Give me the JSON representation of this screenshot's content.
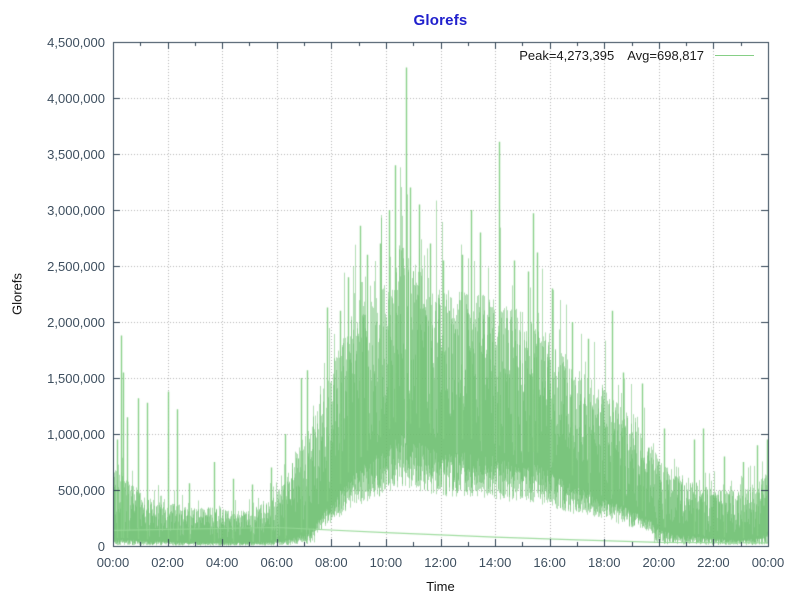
{
  "title": {
    "text": "Glorefs",
    "color": "#2020cd"
  },
  "legend": {
    "peak_label": "Peak=4,273,395",
    "avg_label": "Avg=698,817",
    "sample_color": "#86cf86"
  },
  "chart_data": {
    "type": "line",
    "style": "impulse-noise-band",
    "title": "Glorefs",
    "xlabel": "Time",
    "ylabel": "Glorefs",
    "x_unit": "hours",
    "xlim_hours": [
      0,
      24
    ],
    "ylim": [
      0,
      4500000
    ],
    "grid": true,
    "legend_position": "top-right",
    "peak": 4273395,
    "avg": 698817,
    "xtick_labels": [
      "00:00",
      "02:00",
      "04:00",
      "06:00",
      "08:00",
      "10:00",
      "12:00",
      "14:00",
      "16:00",
      "18:00",
      "20:00",
      "22:00",
      "00:00"
    ],
    "ytick_labels": [
      "0",
      "500,000",
      "1,000,000",
      "1,500,000",
      "2,000,000",
      "2,500,000",
      "3,000,000",
      "3,500,000",
      "4,000,000",
      "4,500,000"
    ],
    "colors": {
      "series": "#68bd6c",
      "series_light": "#86cf86",
      "trend": "#96d896",
      "grid": "#b6b6b6",
      "axis": "#2e4152",
      "tick_label": "#3e4f5f"
    },
    "noise_seed": 1337,
    "series": [
      {
        "name": "glorefs",
        "representation": "envelope",
        "envelope": [
          [
            0,
            60000,
            800000
          ],
          [
            0.5,
            60000,
            650000
          ],
          [
            1,
            50000,
            480000
          ],
          [
            1.5,
            45000,
            420000
          ],
          [
            2,
            40000,
            400000
          ],
          [
            2.5,
            35000,
            370000
          ],
          [
            3,
            30000,
            340000
          ],
          [
            3.5,
            30000,
            350000
          ],
          [
            4,
            30000,
            330000
          ],
          [
            4.5,
            30000,
            320000
          ],
          [
            5,
            30000,
            330000
          ],
          [
            5.5,
            35000,
            380000
          ],
          [
            6,
            45000,
            470000
          ],
          [
            6.5,
            60000,
            700000
          ],
          [
            7,
            110000,
            1000000
          ],
          [
            7.5,
            220000,
            1300000
          ],
          [
            8,
            380000,
            1600000
          ],
          [
            8.5,
            520000,
            1950000
          ],
          [
            9,
            650000,
            2200000
          ],
          [
            9.5,
            750000,
            2350000
          ],
          [
            10,
            850000,
            2500000
          ],
          [
            10.5,
            950000,
            2750000
          ],
          [
            11,
            900000,
            2600000
          ],
          [
            11.5,
            850000,
            2450000
          ],
          [
            12,
            800000,
            2350000
          ],
          [
            12.5,
            780000,
            2250000
          ],
          [
            13,
            800000,
            2300000
          ],
          [
            13.5,
            780000,
            2250000
          ],
          [
            14,
            760000,
            2200000
          ],
          [
            14.5,
            720000,
            2150000
          ],
          [
            15,
            700000,
            2100000
          ],
          [
            15.5,
            700000,
            2050000
          ],
          [
            16,
            640000,
            1900000
          ],
          [
            16.5,
            560000,
            1750000
          ],
          [
            17,
            500000,
            1600000
          ],
          [
            17.5,
            460000,
            1500000
          ],
          [
            18,
            420000,
            1450000
          ],
          [
            18.5,
            360000,
            1300000
          ],
          [
            19,
            300000,
            1150000
          ],
          [
            19.5,
            250000,
            1000000
          ],
          [
            20,
            160000,
            800000
          ],
          [
            20.5,
            110000,
            650000
          ],
          [
            21,
            90000,
            600000
          ],
          [
            21.5,
            85000,
            560000
          ],
          [
            22,
            70000,
            520000
          ],
          [
            22.5,
            65000,
            500000
          ],
          [
            23,
            55000,
            500000
          ],
          [
            23.5,
            65000,
            560000
          ],
          [
            24,
            110000,
            660000
          ]
        ],
        "spikes": [
          [
            0.15,
            950000
          ],
          [
            0.3,
            1880000
          ],
          [
            0.38,
            1550000
          ],
          [
            0.5,
            1150000
          ],
          [
            0.9,
            1320000
          ],
          [
            1.25,
            1280000
          ],
          [
            2.0,
            1380000
          ],
          [
            2.35,
            1220000
          ],
          [
            2.8,
            560000
          ],
          [
            3.7,
            750000
          ],
          [
            4.4,
            600000
          ],
          [
            5.1,
            550000
          ],
          [
            5.8,
            700000
          ],
          [
            6.3,
            1000000
          ],
          [
            6.9,
            1500000
          ],
          [
            7.1,
            1570000
          ],
          [
            7.85,
            2130000
          ],
          [
            8.3,
            2100000
          ],
          [
            8.6,
            2400000
          ],
          [
            9.05,
            2860000
          ],
          [
            9.3,
            2600000
          ],
          [
            9.8,
            2700000
          ],
          [
            10.1,
            3000000
          ],
          [
            10.35,
            3400000
          ],
          [
            10.72,
            4273395
          ],
          [
            10.9,
            3200000
          ],
          [
            11.2,
            3050000
          ],
          [
            11.6,
            2700000
          ],
          [
            12.1,
            2550000
          ],
          [
            12.8,
            2600000
          ],
          [
            13.1,
            3000000
          ],
          [
            13.45,
            2800000
          ],
          [
            14.15,
            3610000
          ],
          [
            14.7,
            2550000
          ],
          [
            15.2,
            2450000
          ],
          [
            15.4,
            2970000
          ],
          [
            15.55,
            2620000
          ],
          [
            16.1,
            2300000
          ],
          [
            16.8,
            2000000
          ],
          [
            17.4,
            1850000
          ],
          [
            18.3,
            2100000
          ],
          [
            18.7,
            1550000
          ],
          [
            19.4,
            1450000
          ],
          [
            20.2,
            1050000
          ],
          [
            21.3,
            950000
          ],
          [
            21.6,
            1050000
          ],
          [
            22.4,
            800000
          ],
          [
            23.1,
            750000
          ],
          [
            23.6,
            900000
          ],
          [
            23.95,
            950000
          ]
        ]
      },
      {
        "name": "trend",
        "representation": "polyline",
        "points": [
          [
            0,
            140000
          ],
          [
            6,
            165000
          ],
          [
            10,
            120000
          ],
          [
            14,
            80000
          ],
          [
            17,
            55000
          ],
          [
            20,
            33000
          ],
          [
            24,
            28000
          ]
        ]
      }
    ]
  }
}
